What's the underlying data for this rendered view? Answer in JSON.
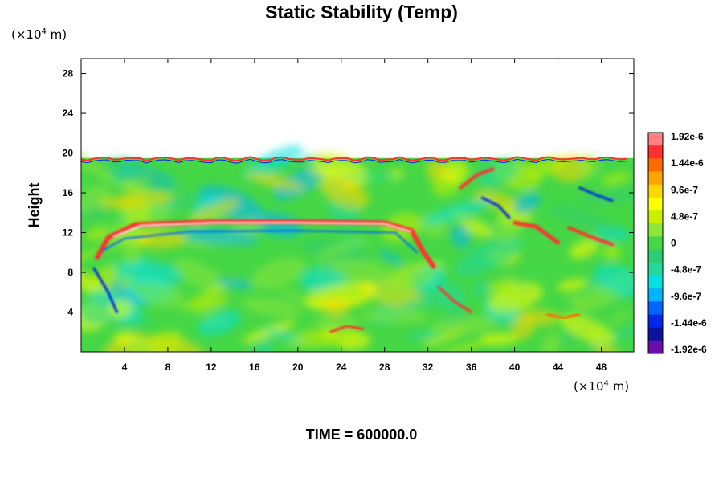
{
  "page": {
    "title": "Static Stability (Temp)",
    "time_label": "TIME = 600000.0",
    "y_unit": "(×10",
    "y_unit_exp": "4",
    "y_unit_tail": " m)",
    "x_unit": "(×10",
    "x_unit_exp": "4",
    "x_unit_tail": " m)"
  },
  "chart_data": {
    "type": "heatmap",
    "title": "Static Stability (Temp)",
    "xlabel": "",
    "ylabel": "Height",
    "x_unit": "×10^4 m",
    "y_unit": "×10^4 m",
    "xlim": [
      0,
      51
    ],
    "ylim": [
      0,
      29.5
    ],
    "x_ticks": [
      4,
      8,
      12,
      16,
      20,
      24,
      28,
      32,
      36,
      40,
      44,
      48
    ],
    "y_ticks": [
      4,
      8,
      12,
      16,
      20,
      24,
      28
    ],
    "data_top": 19.5,
    "colorbar": {
      "ticks": [
        "1.92e-6",
        "1.44e-6",
        "9.6e-7",
        "4.8e-7",
        "0",
        "-4.8e-7",
        "-9.6e-7",
        "-1.44e-6",
        "-1.92e-6"
      ],
      "colors": [
        "#ff8080",
        "#ff3030",
        "#ff6a00",
        "#ffa500",
        "#ffd700",
        "#ffff00",
        "#c8f000",
        "#8ce63c",
        "#46d746",
        "#2ecc71",
        "#22d8a0",
        "#00e0e0",
        "#00b4ff",
        "#0064ff",
        "#0028e6",
        "#1010a0",
        "#6a0dad"
      ]
    },
    "features": [
      {
        "name": "upper-stable-band",
        "points": [
          [
            1.5,
            9.5
          ],
          [
            2.5,
            11.5
          ],
          [
            5,
            12.8
          ],
          [
            12,
            13.1
          ],
          [
            20,
            13.1
          ],
          [
            28,
            13
          ],
          [
            30.5,
            12.2
          ],
          [
            31.5,
            10.2
          ],
          [
            32.5,
            8.6
          ]
        ],
        "color": "#ff3030",
        "width": 6
      },
      {
        "name": "upper-band-core",
        "points": [
          [
            3,
            11.6
          ],
          [
            5.5,
            12.7
          ],
          [
            12,
            13
          ],
          [
            20,
            13
          ],
          [
            28,
            12.9
          ],
          [
            30.4,
            12.1
          ]
        ],
        "color": "#ffffff",
        "width": 2
      },
      {
        "name": "lower-stable-band",
        "points": [
          [
            2,
            10.2
          ],
          [
            4,
            11.4
          ],
          [
            10,
            12.1
          ],
          [
            20,
            12.2
          ],
          [
            29,
            12
          ],
          [
            31,
            10
          ]
        ],
        "color": "#0064ff",
        "width": 2
      },
      {
        "name": "left-tail",
        "points": [
          [
            1.2,
            8.4
          ],
          [
            2.5,
            6
          ],
          [
            3.3,
            4
          ]
        ],
        "color": "#0028e6",
        "width": 3
      },
      {
        "name": "cold-tail-1",
        "points": [
          [
            33,
            6.5
          ],
          [
            34.5,
            5
          ],
          [
            36,
            4
          ]
        ],
        "color": "#ff3030",
        "width": 3
      },
      {
        "name": "eddy-1",
        "points": [
          [
            35,
            16.5
          ],
          [
            36.5,
            17.8
          ],
          [
            38,
            18.4
          ]
        ],
        "color": "#ff3030",
        "width": 4
      },
      {
        "name": "eddy-2",
        "points": [
          [
            40,
            13
          ],
          [
            42,
            12.6
          ],
          [
            44,
            11
          ]
        ],
        "color": "#ff3030",
        "width": 5
      },
      {
        "name": "eddy-3",
        "points": [
          [
            45,
            12.5
          ],
          [
            47,
            11.6
          ],
          [
            49,
            10.8
          ]
        ],
        "color": "#ff3030",
        "width": 4
      },
      {
        "name": "eddy-4",
        "points": [
          [
            46,
            16.5
          ],
          [
            47.5,
            15.8
          ],
          [
            49,
            15.2
          ]
        ],
        "color": "#0028e6",
        "width": 3
      },
      {
        "name": "eddy-5",
        "points": [
          [
            37,
            15.5
          ],
          [
            38.5,
            14.7
          ],
          [
            39.5,
            13.5
          ]
        ],
        "color": "#0028e6",
        "width": 3
      },
      {
        "name": "bottom-streak",
        "points": [
          [
            23,
            2
          ],
          [
            24.5,
            2.6
          ],
          [
            26,
            2.3
          ]
        ],
        "color": "#ff3030",
        "width": 3
      },
      {
        "name": "right-vortex",
        "points": [
          [
            43,
            3.8
          ],
          [
            44.5,
            3.4
          ],
          [
            46,
            3.8
          ]
        ],
        "color": "#ff6a00",
        "width": 3
      }
    ]
  }
}
